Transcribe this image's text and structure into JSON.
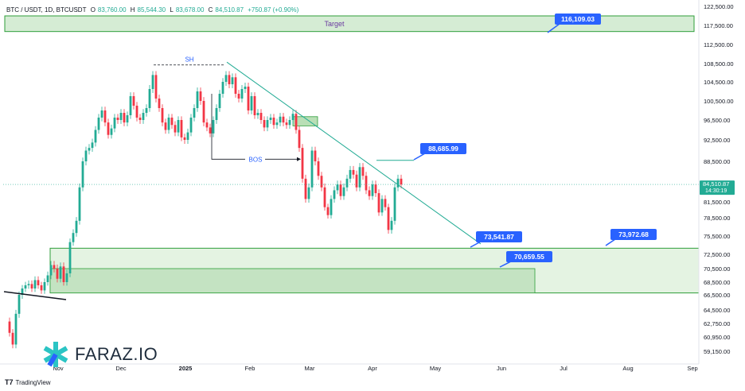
{
  "header": {
    "symbol": "BTC / USDT, 1D, BTCUSDT",
    "o_label": "O",
    "o_val": "83,760.00",
    "h_label": "H",
    "h_val": "85,544.30",
    "l_label": "L",
    "l_val": "83,678.00",
    "c_label": "C",
    "c_val": "84,510.87",
    "change": "+750.87 (+0.90%)"
  },
  "brand": {
    "name": "FARAZ.IO",
    "icon": "faraz-logo-icon"
  },
  "footer": {
    "logo": "T7",
    "text": "TradingView"
  },
  "colors": {
    "up": "#22ab94",
    "down": "#f23645",
    "zone_fill": "#c8e6c9",
    "zone_stroke": "#2e9e3a",
    "callout": "#2962ff"
  },
  "chart_data": {
    "type": "candlestick",
    "y_ticks": [
      "122,500.00",
      "117,500.00",
      "112,500.00",
      "108,500.00",
      "104,500.00",
      "100,500.00",
      "96,500.00",
      "92,500.00",
      "88,500.00",
      "81,500.00",
      "78,500.00",
      "75,500.00",
      "72,500.00",
      "70,500.00",
      "68,500.00",
      "66,500.00",
      "64,500.00",
      "62,750.00",
      "60,950.00",
      "59,150.00"
    ],
    "x_ticks": [
      "Nov",
      "Dec",
      "2025",
      "Feb",
      "Mar",
      "Apr",
      "May",
      "Jun",
      "Jul",
      "Aug",
      "Sep"
    ],
    "last_price": "84,510.87",
    "countdown": "14:30:19",
    "target_zone": {
      "label": "Target",
      "top": 120000,
      "bottom": 115900
    },
    "demand_zone_outer": {
      "top": 73500,
      "bottom": 66800
    },
    "demand_zone_inner": {
      "top": 70500,
      "bottom": 66800
    },
    "supply_box": {
      "top": 97200,
      "bottom": 95800
    },
    "callouts": [
      {
        "text": "116,109.03",
        "value": 116109.03
      },
      {
        "text": "88,685.99",
        "value": 88685.99
      },
      {
        "text": "73,541.87",
        "value": 73541.87
      },
      {
        "text": "73,972.68",
        "value": 73972.68
      },
      {
        "text": "70,659.55",
        "value": 70659.55
      }
    ],
    "annotations": [
      {
        "text": "SH",
        "value": 108200
      },
      {
        "text": "BOS",
        "value": 88900
      }
    ]
  }
}
